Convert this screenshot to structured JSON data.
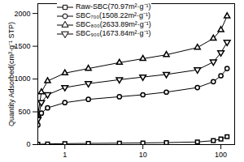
{
  "chart_data": {
    "type": "line",
    "y_label": "Quantity Adsorbed(cm³·g⁻¹ STP)",
    "log": "x",
    "xlim": [
      0.45,
      150
    ],
    "xticks": [
      1,
      10,
      100
    ],
    "ylim": [
      0,
      2150
    ],
    "yticks": [
      0,
      500,
      1000,
      1500,
      2000
    ],
    "legend": "top-left",
    "grid": false,
    "series": [
      {
        "name": "Raw-SBC(70.97m²·g⁻¹)",
        "color": "#000000",
        "marker": "square",
        "x": [
          0.45,
          0.6,
          1,
          2,
          5,
          10,
          20,
          50,
          80,
          100,
          120
        ],
        "values": [
          5,
          10,
          15,
          18,
          22,
          25,
          30,
          40,
          60,
          85,
          120
        ]
      },
      {
        "name": "SBC₇₀₀(1508.22m²·g⁻¹)",
        "color": "#000000",
        "marker": "circle",
        "x": [
          0.45,
          0.5,
          0.6,
          1,
          2,
          5,
          10,
          20,
          50,
          80,
          100,
          120
        ],
        "values": [
          300,
          480,
          560,
          640,
          690,
          730,
          760,
          800,
          870,
          960,
          1050,
          1160
        ]
      },
      {
        "name": "SBC₈₀₀(2633.89m²·g⁻¹)",
        "color": "#000000",
        "marker": "triangle",
        "x": [
          0.45,
          0.5,
          0.6,
          1,
          2,
          5,
          10,
          20,
          50,
          80,
          100,
          120
        ],
        "values": [
          450,
          800,
          970,
          1090,
          1160,
          1250,
          1310,
          1370,
          1480,
          1620,
          1750,
          1960
        ]
      },
      {
        "name": "SBC₉₀₀(1673.84m²·g⁻¹)",
        "color": "#000000",
        "marker": "triangle_down",
        "x": [
          0.45,
          0.5,
          0.6,
          1,
          2,
          5,
          10,
          20,
          50,
          80,
          100,
          120
        ],
        "values": [
          380,
          640,
          760,
          870,
          930,
          990,
          1030,
          1070,
          1140,
          1260,
          1400,
          1560
        ]
      }
    ]
  }
}
